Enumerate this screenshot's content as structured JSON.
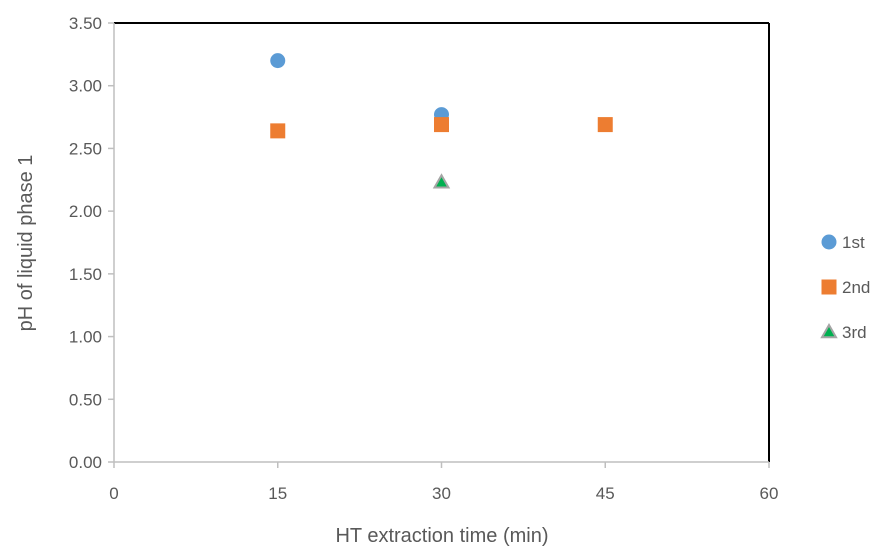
{
  "chart_data": {
    "type": "scatter",
    "title": "",
    "xlabel": "HT extraction time (min)",
    "ylabel": "pH of liquid phase 1",
    "xlim": [
      0,
      60
    ],
    "ylim": [
      0,
      3.5
    ],
    "x_ticks": [
      "0",
      "15",
      "30",
      "45",
      "60"
    ],
    "x_tick_values": [
      0,
      15,
      30,
      45,
      60
    ],
    "y_ticks": [
      "0.00",
      "0.50",
      "1.00",
      "1.50",
      "2.00",
      "2.50",
      "3.00",
      "3.50"
    ],
    "y_tick_values": [
      0,
      0.5,
      1.0,
      1.5,
      2.0,
      2.5,
      3.0,
      3.5
    ],
    "grid": false,
    "legend_position": "right",
    "series": [
      {
        "name": "1st",
        "marker": "circle",
        "color": "#5B9BD5",
        "x": [
          15,
          30
        ],
        "y": [
          3.2,
          2.77
        ]
      },
      {
        "name": "2nd",
        "marker": "square",
        "color": "#ED7D31",
        "x": [
          15,
          30,
          45
        ],
        "y": [
          2.64,
          2.69,
          2.69
        ]
      },
      {
        "name": "3rd",
        "marker": "triangle",
        "color": "#00B050",
        "stroke": "#A5A5A5",
        "x": [
          30
        ],
        "y": [
          2.23
        ]
      }
    ]
  }
}
